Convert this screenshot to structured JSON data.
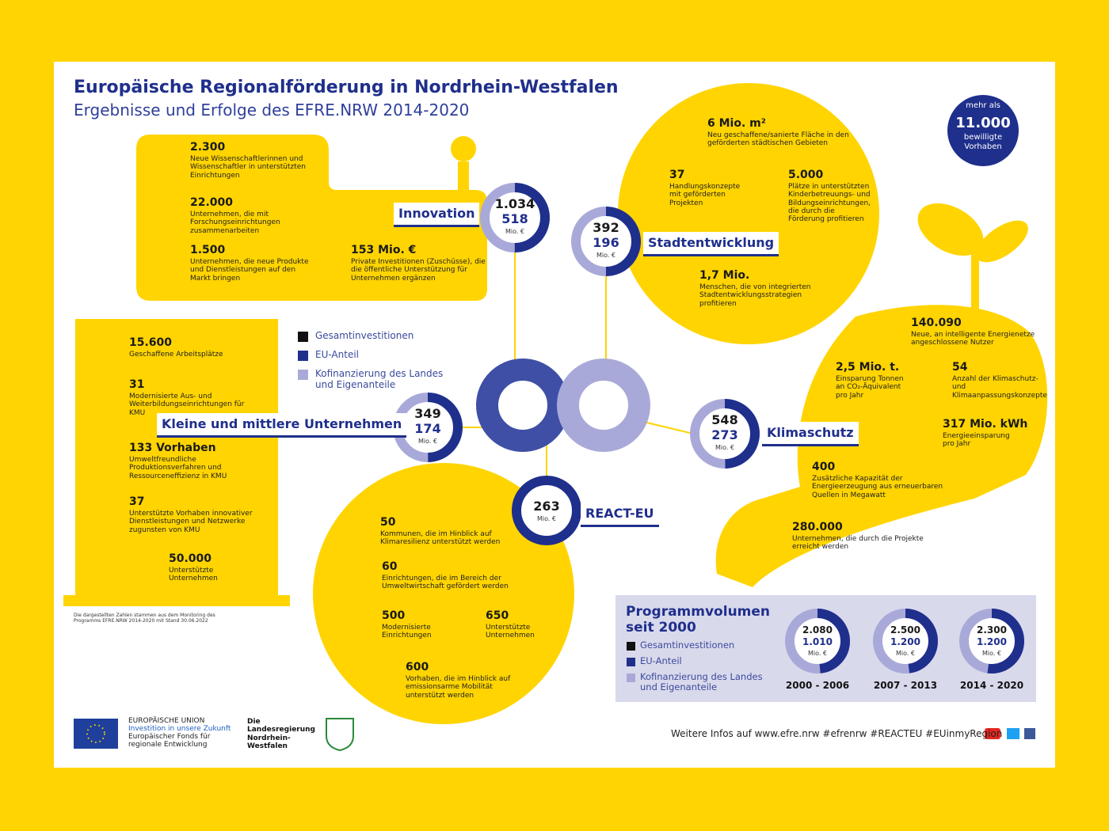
{
  "header": {
    "title": "Europäische Regionalförderung in Nordrhein-Westfalen",
    "subtitle": "Ergebnisse und Erfolge des EFRE.NRW 2014-2020"
  },
  "badge": [
    "mehr als",
    "11.000",
    "bewilligte Vorhaben"
  ],
  "legend": {
    "colors": [
      "#111111",
      "#1f2f8c",
      "#a9a9d9"
    ],
    "items": [
      "Gesamtinvestitionen",
      "EU-Anteil",
      "Kofinanzierung des Landes und Eigenanteile"
    ]
  },
  "unit": "Mio. €",
  "sections": [
    {
      "name": "Innovation",
      "total": {
        "value": 1034,
        "label": "1.034"
      },
      "eu": 518,
      "stats": [
        {
          "value": "2.300",
          "text": "Neue Wissenschaftlerinnen und Wissenschaftler in unterstützten Einrichtungen"
        },
        {
          "value": "22.000",
          "text": "Unternehmen, die mit Forschungseinrichtungen zusammenarbeiten"
        },
        {
          "value": "1.500",
          "text": "Unternehmen, die neue Produkte und Dienstleistungen auf den Markt bringen"
        },
        {
          "value": "153 Mio. €",
          "text": "Private Investitionen (Zuschüsse), die die öffentliche Unterstützung für Unternehmen ergänzen"
        }
      ]
    },
    {
      "name": "Stadtentwicklung",
      "total": 392,
      "eu": 196,
      "stats": [
        {
          "value": "6 Mio. m²",
          "text": "Neu geschaffene/sanierte Fläche in den geförderten städtischen Gebieten"
        },
        {
          "value": "37",
          "text": "Handlungskonzepte mit geförderten Projekten"
        },
        {
          "value": "5.000",
          "text": "Plätze in unterstützten Kinderbetreuungs- und Bildungseinrichtungen, die durch die Förderung profitieren"
        },
        {
          "value": "1,7 Mio.",
          "text": "Menschen, die von integrierten Stadtentwicklungsstrategien profitieren"
        }
      ]
    },
    {
      "name": "Kleine und mittlere Unternehmen",
      "total": 349,
      "eu": 174,
      "stats": [
        {
          "value": "15.600",
          "text": "Geschaffene Arbeitsplätze"
        },
        {
          "value": "31",
          "text": "Modernisierte Aus- und Weiterbildungseinrichtungen für KMU"
        },
        {
          "value": "133 Vorhaben",
          "text": "Umweltfreundliche Produktionsverfahren und Ressourceneffizienz in KMU"
        },
        {
          "value": "37",
          "text": "Unterstützte Vorhaben innovativer Dienstleistungen und Netzwerke zugunsten von KMU"
        },
        {
          "value": "50.000",
          "text": "Unterstützte Unternehmen"
        }
      ]
    },
    {
      "name": "Klimaschutz",
      "total": 548,
      "eu": 273,
      "stats": [
        {
          "value": "140.090",
          "text": "Neue, an intelligente Energienetze angeschlossene Nutzer"
        },
        {
          "value": "2,5 Mio. t.",
          "text": "Einsparung Tonnen an CO₂-Äquivalent pro Jahr"
        },
        {
          "value": "54",
          "text": "Anzahl der Klimaschutz- und Klimaanpassungskonzepte"
        },
        {
          "value": "317 Mio. kWh",
          "text": "Energieeinsparung pro Jahr"
        },
        {
          "value": "400",
          "text": "Zusätzliche Kapazität der Energieerzeugung aus erneuerbaren Quellen in Megawatt"
        },
        {
          "value": "280.000",
          "text": "Unternehmen, die durch die Projekte erreicht werden"
        }
      ]
    },
    {
      "name": "REACT-EU",
      "total": 263,
      "stats": [
        {
          "value": "50",
          "text": "Kommunen, die im Hinblick auf Klimaresilienz unterstützt werden"
        },
        {
          "value": "60",
          "text": "Einrichtungen, die im Bereich der Umweltwirtschaft gefördert werden"
        },
        {
          "value": "500",
          "text": "Modernisierte Einrichtungen"
        },
        {
          "value": "650",
          "text": "Unterstützte Unternehmen"
        },
        {
          "value": "600",
          "text": "Vorhaben, die im Hinblick auf emissionsarme Mobilität unterstützt werden"
        }
      ]
    }
  ],
  "footnote": "Die dargestellten Zahlen stammen aus dem Monitoring des Programms EFRE.NRW 2014-2020 mit Stand 30.06.2022",
  "program": {
    "title": "Programmvolumen seit 2000",
    "periods": [
      {
        "label": "2000 - 2006",
        "total": {
          "value": 2080,
          "label": "2.080"
        },
        "eu": {
          "value": 1010,
          "label": "1.010"
        }
      },
      {
        "label": "2007 - 2013",
        "total": {
          "value": 2500,
          "label": "2.500"
        },
        "eu": {
          "value": 1200,
          "label": "1.200"
        }
      },
      {
        "label": "2014 - 2020",
        "total": {
          "value": 2300,
          "label": "2.300"
        },
        "eu": {
          "value": 1200,
          "label": "1.200"
        }
      }
    ]
  },
  "footer": {
    "eu": [
      "EUROPÄISCHE UNION",
      "Investition in unsere Zukunft",
      "Europäischer Fonds für regionale Entwicklung"
    ],
    "state": "Die Landesregierung Nordrhein-Westfalen",
    "links": "Weitere Infos auf www.efre.nrw #efrenrw #REACTEU #EUinmyRegion"
  }
}
